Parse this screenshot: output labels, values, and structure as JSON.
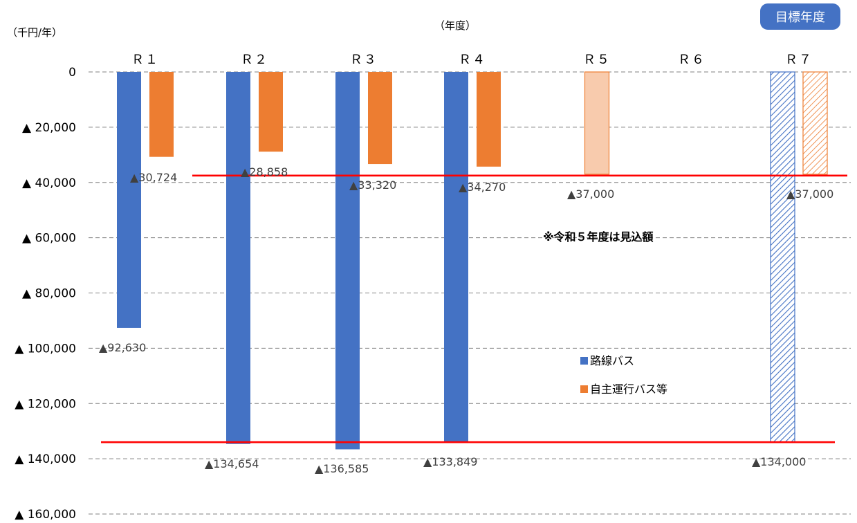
{
  "chart_data": {
    "type": "bar",
    "title": "",
    "yunit": "（千円/年）",
    "xlabel": "（年度）",
    "ylim": [
      -160000,
      0
    ],
    "ytick_step": 20000,
    "yticks": [
      "0",
      "▲ 20,000",
      "▲ 40,000",
      "▲ 60,000",
      "▲ 80,000",
      "▲ 100,000",
      "▲ 120,000",
      "▲ 140,000",
      "▲ 160,000"
    ],
    "categories": [
      "Ｒ１",
      "Ｒ２",
      "Ｒ３",
      "Ｒ４",
      "Ｒ５",
      "Ｒ６",
      "Ｒ７"
    ],
    "series": [
      {
        "name": "路線バス",
        "color": "#4472C4",
        "values": [
          -92630,
          -134654,
          -136585,
          -133849,
          null,
          null,
          -134000
        ],
        "labels": [
          "▲92,630",
          "▲134,654",
          "▲136,585",
          "▲133,849",
          "",
          "",
          "▲134,000"
        ]
      },
      {
        "name": "自主運行バス等",
        "color": "#ED7D31",
        "values": [
          -30724,
          -28858,
          -33320,
          -34270,
          -37000,
          null,
          -37000
        ],
        "labels": [
          "▲30,724",
          "▲28,858",
          "▲33,320",
          "▲34,270",
          "▲37,000",
          "",
          "▲37,000"
        ]
      }
    ],
    "reference_lines": [
      {
        "value": -37500,
        "color": "#FF0000"
      },
      {
        "value": -134000,
        "color": "#FF0000"
      }
    ],
    "estimate_categories": [
      "Ｒ５"
    ],
    "target_categories": [
      "Ｒ７"
    ],
    "estimate_fill": "#F8CBAD",
    "annotation": "※令和５年度は見込額",
    "target_badge": "目標年度",
    "target_badge_color": "#4472C4",
    "legend_position": "right-middle",
    "grid": true
  }
}
